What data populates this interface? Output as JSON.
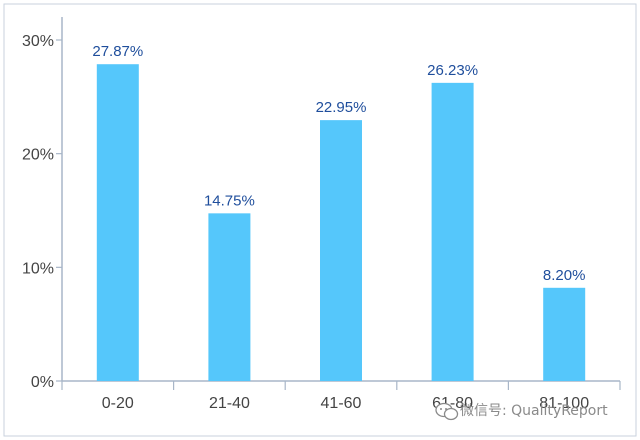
{
  "chart_data": {
    "type": "bar",
    "categories": [
      "0-20",
      "21-40",
      "41-60",
      "61-80",
      "81-100"
    ],
    "values": [
      27.87,
      14.75,
      22.95,
      26.23,
      8.2
    ],
    "value_labels": [
      "27.87%",
      "14.75%",
      "22.95%",
      "26.23%",
      "8.20%"
    ],
    "y_ticks": [
      {
        "value": 0,
        "label": "0%"
      },
      {
        "value": 10,
        "label": "10%"
      },
      {
        "value": 20,
        "label": "20%"
      },
      {
        "value": 30,
        "label": "30%"
      }
    ],
    "ylim": [
      0,
      30
    ],
    "grid": false,
    "legend": "none",
    "title": "",
    "xlabel": "",
    "ylabel": "",
    "colors": {
      "bar": "#55c7fb",
      "axis": "#a8b6c8",
      "label": "#1f4e9c",
      "frame": "#c9d2de"
    }
  },
  "watermark": {
    "text": "微信号: QualityReport",
    "icon": "wechat-icon"
  }
}
